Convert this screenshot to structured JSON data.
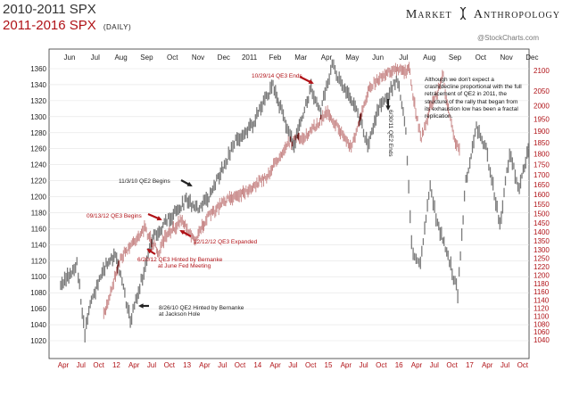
{
  "header": {
    "title_main": "2010-2011 SPX",
    "title_sub": "2011-2016 SPX",
    "title_period": "(DAILY)",
    "brand_left": "Market",
    "brand_right": "Anthropology",
    "credit": "@StockCharts.com"
  },
  "note": "Although we don't expect a crash/decline proportional with the full retracement of QE2 in 2011, the structure of the rally that began from its exhaustion low has been a fractal replication.",
  "colors": {
    "gray": "#7b7b7b",
    "red": "#b01217",
    "pink": "#c98a8a",
    "overlap": "#6a1c1c"
  },
  "chart_data": {
    "type": "line",
    "top_axis_months": [
      "Jun",
      "Jul",
      "Aug",
      "Sep",
      "Oct",
      "Nov",
      "Dec",
      "2011",
      "Feb",
      "Mar",
      "Apr",
      "May",
      "Jun",
      "Jul",
      "Aug",
      "Sep",
      "Oct",
      "Nov",
      "Dec"
    ],
    "bottom_axis_labels": [
      "Apr",
      "Jul",
      "Oct",
      "12",
      "Apr",
      "Jul",
      "Oct",
      "13",
      "Apr",
      "Jul",
      "Oct",
      "14",
      "Apr",
      "Jul",
      "Oct",
      "15",
      "Apr",
      "Jul",
      "Oct",
      "16",
      "Apr",
      "Jul",
      "Oct",
      "17",
      "Apr",
      "Jul",
      "Oct"
    ],
    "left_axis": {
      "series": "2010-2011 SPX",
      "ticks": [
        1360,
        1340,
        1320,
        1300,
        1280,
        1260,
        1240,
        1220,
        1200,
        1180,
        1160,
        1140,
        1120,
        1100,
        1080,
        1060,
        1040,
        1020
      ],
      "ylim": [
        1010,
        1370
      ]
    },
    "right_axis": {
      "series": "2011-2016 SPX",
      "ticks": [
        2100,
        2050,
        2000,
        1950,
        1900,
        1850,
        1800,
        1750,
        1700,
        1650,
        1600,
        1550,
        1500,
        1450,
        1400,
        1350,
        1300,
        1250,
        1220,
        1200,
        1180,
        1160,
        1140,
        1120,
        1100,
        1080,
        1060,
        1040
      ]
    },
    "series": [
      {
        "name": "2010-2011 SPX",
        "color": "#7b7b7b",
        "axis": "left",
        "x": [
          "2010-06-01",
          "2010-06-21",
          "2010-07-01",
          "2010-07-09",
          "2010-07-27",
          "2010-08-09",
          "2010-08-26",
          "2010-09-10",
          "2010-09-24",
          "2010-10-15",
          "2010-11-03",
          "2010-11-16",
          "2010-12-01",
          "2010-12-20",
          "2011-01-03",
          "2011-01-24",
          "2011-02-18",
          "2011-03-01",
          "2011-03-16",
          "2011-04-06",
          "2011-04-18",
          "2011-05-02",
          "2011-05-16",
          "2011-06-01",
          "2011-06-15",
          "2011-06-30",
          "2011-07-22",
          "2011-08-01",
          "2011-08-08",
          "2011-08-10",
          "2011-08-19",
          "2011-08-31",
          "2011-09-09",
          "2011-09-22",
          "2011-10-04",
          "2011-10-14",
          "2011-10-27",
          "2011-11-08",
          "2011-11-25",
          "2011-12-07",
          "2011-12-19",
          "2011-12-30"
        ],
        "values": [
          1090,
          1115,
          1030,
          1070,
          1115,
          1125,
          1045,
          1100,
          1150,
          1175,
          1195,
          1185,
          1200,
          1240,
          1270,
          1290,
          1340,
          1305,
          1265,
          1335,
          1310,
          1365,
          1335,
          1310,
          1265,
          1315,
          1345,
          1285,
          1140,
          1125,
          1120,
          1215,
          1165,
          1125,
          1080,
          1220,
          1285,
          1260,
          1165,
          1255,
          1210,
          1258
        ]
      },
      {
        "name": "2011-2016 SPX",
        "color": "#c98a8a",
        "axis": "right",
        "x": [
          "2011-10-03",
          "2012-01-03",
          "2012-04-02",
          "2012-06-04",
          "2012-07-02",
          "2012-09-14",
          "2012-11-15",
          "2013-01-02",
          "2013-04-01",
          "2013-07-01",
          "2013-10-01",
          "2014-01-02",
          "2014-04-01",
          "2014-07-01",
          "2014-10-15",
          "2015-01-02",
          "2015-04-01",
          "2015-07-01",
          "2015-08-25",
          "2015-10-01",
          "2015-12-01",
          "2016-01-20",
          "2016-02-11"
        ],
        "values": [
          1100,
          1280,
          1420,
          1280,
          1360,
          1470,
          1350,
          1470,
          1570,
          1620,
          1690,
          1850,
          1880,
          1980,
          1830,
          2060,
          2100,
          2110,
          1870,
          1990,
          2090,
          1860,
          1820
        ]
      }
    ],
    "annotations": [
      {
        "text": "10/29/14 QE3 Ends",
        "color": "#b01217"
      },
      {
        "text": "6/30/11 QE2 Ends",
        "color": "#222222"
      },
      {
        "text": "11/3/10 QE2 Begins",
        "color": "#222222"
      },
      {
        "text": "09/13/12 QE3 Begins",
        "color": "#b01217"
      },
      {
        "text": "12/12/12 QE3 Expanded",
        "color": "#b01217"
      },
      {
        "text": "6/20/12 QE3 Hinted by Bernanke",
        "color": "#b01217"
      },
      {
        "text": "at June Fed Meeting",
        "color": "#b01217"
      },
      {
        "text": "8/26/10 QE2 Hinted by Bernanke",
        "color": "#222222"
      },
      {
        "text": "at Jackson Hole",
        "color": "#222222"
      }
    ]
  }
}
